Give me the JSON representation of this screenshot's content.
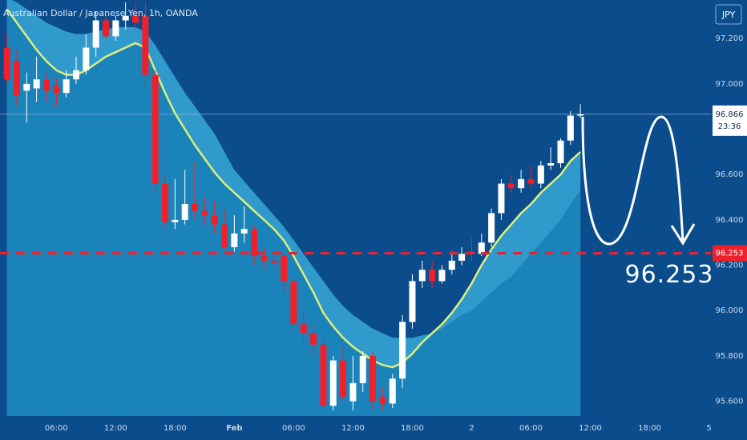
{
  "chart_data": {
    "type": "candlestick",
    "title": "Australian Dollar / Japanese Yen, 1h, OANDA",
    "currency_button": "JPY",
    "candles": {
      "x": [
        -23,
        -22,
        -21,
        -20,
        -19,
        -18,
        -17,
        -16,
        -15,
        -14,
        -13,
        -12,
        -11,
        -10,
        -9,
        -8,
        -7,
        -6,
        -5,
        -4,
        -3,
        -2,
        -1,
        0,
        1,
        2,
        3,
        4,
        5,
        6,
        7,
        8,
        9,
        10,
        11,
        12,
        13,
        14,
        15,
        16,
        17,
        18,
        19,
        20,
        21,
        22,
        23,
        24,
        25,
        26,
        27,
        28,
        29,
        30,
        31,
        32,
        33,
        34,
        35
      ],
      "open": [
        97.16,
        97.1,
        96.97,
        96.98,
        97.02,
        96.99,
        96.96,
        97.02,
        97.06,
        97.16,
        97.28,
        97.21,
        97.28,
        97.3,
        97.3,
        97.04,
        96.56,
        96.39,
        96.4,
        96.47,
        96.44,
        96.42,
        96.38,
        96.28,
        96.34,
        96.36,
        96.24,
        96.22,
        96.24,
        96.13,
        95.94,
        95.9,
        95.85,
        95.58,
        95.78,
        95.6,
        95.68,
        95.8,
        95.62,
        95.59,
        95.7,
        95.95,
        96.13,
        96.18,
        96.13,
        96.18,
        96.22,
        96.26,
        96.25,
        96.3,
        96.43,
        96.56,
        96.54,
        96.58,
        96.56,
        96.64,
        96.65,
        96.75,
        96.86
      ],
      "high": [
        97.22,
        97.15,
        97.05,
        97.12,
        97.05,
        97.03,
        97.06,
        97.12,
        97.22,
        97.32,
        97.3,
        97.3,
        97.36,
        97.36,
        97.36,
        97.06,
        96.6,
        96.58,
        96.62,
        96.66,
        96.5,
        96.48,
        96.45,
        96.42,
        96.46,
        96.38,
        96.28,
        96.25,
        96.25,
        96.16,
        96.0,
        95.94,
        95.88,
        95.8,
        95.84,
        95.8,
        95.82,
        95.82,
        95.66,
        95.72,
        95.98,
        96.16,
        96.22,
        96.22,
        96.2,
        96.26,
        96.28,
        96.32,
        96.34,
        96.45,
        96.58,
        96.6,
        96.62,
        96.64,
        96.66,
        96.72,
        96.76,
        96.88,
        96.91
      ],
      "low": [
        97.0,
        96.9,
        96.83,
        96.92,
        96.92,
        96.9,
        96.94,
        97.0,
        97.04,
        97.12,
        97.2,
        97.19,
        97.24,
        97.24,
        96.98,
        96.52,
        96.36,
        96.36,
        96.38,
        96.4,
        96.38,
        96.34,
        96.26,
        96.26,
        96.3,
        96.2,
        96.18,
        96.18,
        96.08,
        95.9,
        95.86,
        95.8,
        95.56,
        95.56,
        95.6,
        95.56,
        95.64,
        95.56,
        95.56,
        95.57,
        95.66,
        95.92,
        96.1,
        96.1,
        96.12,
        96.16,
        96.2,
        96.22,
        96.24,
        96.28,
        96.4,
        96.52,
        96.52,
        96.54,
        96.54,
        96.62,
        96.63,
        96.73,
        96.85
      ],
      "close": [
        97.02,
        96.95,
        97.0,
        97.02,
        96.97,
        96.96,
        97.02,
        97.06,
        97.16,
        97.28,
        97.21,
        97.28,
        97.3,
        97.27,
        97.04,
        96.56,
        96.39,
        96.4,
        96.47,
        96.44,
        96.42,
        96.38,
        96.28,
        96.34,
        96.36,
        96.24,
        96.22,
        96.21,
        96.13,
        95.94,
        95.9,
        95.85,
        95.58,
        95.78,
        95.62,
        95.68,
        95.8,
        95.6,
        95.59,
        95.7,
        95.95,
        96.13,
        96.18,
        96.13,
        96.18,
        96.22,
        96.25,
        96.25,
        96.3,
        96.43,
        96.56,
        96.54,
        96.58,
        96.56,
        96.64,
        96.65,
        96.75,
        96.86,
        96.866
      ]
    },
    "up_color": "#ffffff",
    "down_color": "#f0202a",
    "ema": {
      "color": "#dcef78",
      "values": [
        97.33,
        97.27,
        97.21,
        97.15,
        97.1,
        97.06,
        97.04,
        97.04,
        97.06,
        97.09,
        97.12,
        97.14,
        97.16,
        97.18,
        97.16,
        97.06,
        96.96,
        96.87,
        96.8,
        96.73,
        96.67,
        96.61,
        96.56,
        96.52,
        96.48,
        96.44,
        96.4,
        96.36,
        96.31,
        96.24,
        96.16,
        96.08,
        95.99,
        95.93,
        95.88,
        95.84,
        95.81,
        95.78,
        95.76,
        95.75,
        95.77,
        95.81,
        95.86,
        95.9,
        95.94,
        95.99,
        96.05,
        96.12,
        96.2,
        96.27,
        96.33,
        96.38,
        96.43,
        96.47,
        96.52,
        96.56,
        96.6,
        96.66,
        96.7
      ]
    },
    "slow": {
      "values": [
        97.38,
        97.36,
        97.33,
        97.3,
        97.27,
        97.25,
        97.23,
        97.22,
        97.22,
        97.23,
        97.24,
        97.25,
        97.25,
        97.25,
        97.23,
        97.17,
        97.1,
        97.03,
        96.96,
        96.9,
        96.84,
        96.78,
        96.7,
        96.62,
        96.57,
        96.52,
        96.47,
        96.42,
        96.37,
        96.31,
        96.25,
        96.19,
        96.13,
        96.07,
        96.02,
        95.98,
        95.95,
        95.92,
        95.9,
        95.88,
        95.88,
        95.88,
        95.89,
        95.9,
        95.92,
        95.95,
        95.98,
        96.0,
        96.04,
        96.08,
        96.12,
        96.15,
        96.2,
        96.25,
        96.3,
        96.35,
        96.4,
        96.47,
        96.53
      ]
    },
    "area_color": "#1a84ba",
    "band_color": "#3aa2d2",
    "background": "#0b4c8c",
    "xlim": [
      -23.7,
      48.2
    ],
    "xticks": [
      {
        "value": -18,
        "label": "06:00"
      },
      {
        "value": -12,
        "label": "12:00"
      },
      {
        "value": -6,
        "label": "18:00"
      },
      {
        "value": 0,
        "label": "Feb"
      },
      {
        "value": 6,
        "label": "06:00"
      },
      {
        "value": 12,
        "label": "12:00"
      },
      {
        "value": 18,
        "label": "18:00"
      },
      {
        "value": 24,
        "label": "2"
      },
      {
        "value": 30,
        "label": "06:00"
      },
      {
        "value": 36,
        "label": "12:00"
      },
      {
        "value": 42,
        "label": "18:00"
      },
      {
        "value": 48,
        "label": "5"
      }
    ],
    "ylim": [
      95.535,
      97.37
    ],
    "yticks": [
      {
        "value": 95.6,
        "label": "95.600"
      },
      {
        "value": 95.8,
        "label": "95.800"
      },
      {
        "value": 96.0,
        "label": "96.000"
      },
      {
        "value": 96.2,
        "label": "96.200"
      },
      {
        "value": 96.4,
        "label": "96.400"
      },
      {
        "value": 96.6,
        "label": "96.600"
      },
      {
        "value": 97.0,
        "label": "97.000"
      },
      {
        "value": 97.2,
        "label": "97.200"
      }
    ],
    "last_price": 96.866,
    "countdown": "23:36",
    "target": 96.253
  }
}
